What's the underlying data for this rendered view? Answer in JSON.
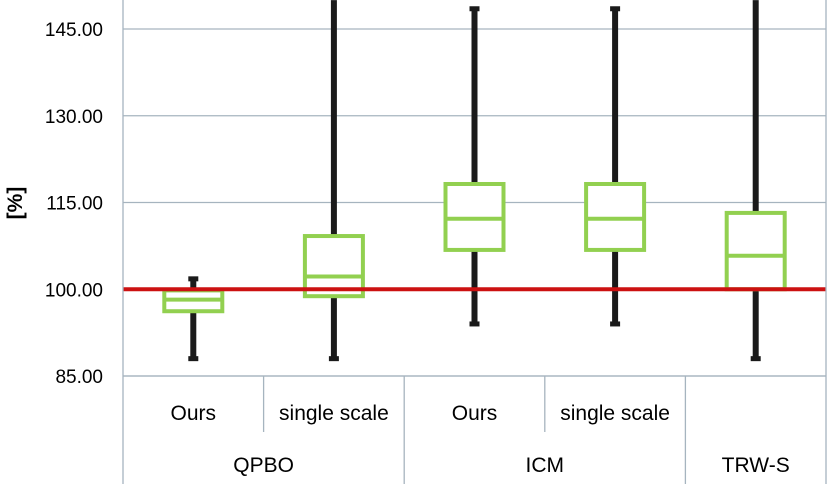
{
  "chart_data": {
    "type": "box",
    "ylabel": "[%]",
    "ylim": [
      85,
      150
    ],
    "yticks": [
      "85.00",
      "100.00",
      "115.00",
      "130.00",
      "145.00"
    ],
    "reference_line": {
      "y": 100,
      "color": "#cc1111"
    },
    "grid": true,
    "colors": {
      "box": "#92d050",
      "whisker": "#1a1a1a",
      "grid": "#a6b4bf"
    },
    "groups": [
      {
        "label": "QPBO",
        "categories": [
          "Ours",
          "single scale"
        ]
      },
      {
        "label": "ICM",
        "categories": [
          "Ours",
          "single scale"
        ]
      },
      {
        "label": "TRW-S",
        "categories": [
          ""
        ]
      }
    ],
    "boxes": [
      {
        "group": "QPBO",
        "category": "Ours",
        "min": 88,
        "q1": 96.2,
        "median": 98.2,
        "q3": 99.8,
        "max": 101.8
      },
      {
        "group": "QPBO",
        "category": "single scale",
        "min": 88,
        "q1": 98.8,
        "median": 102.2,
        "q3": 109.2,
        "max": 150
      },
      {
        "group": "ICM",
        "category": "Ours",
        "min": 94,
        "q1": 106.8,
        "median": 112.2,
        "q3": 118.2,
        "max": 148.5
      },
      {
        "group": "ICM",
        "category": "single scale",
        "min": 94,
        "q1": 106.8,
        "median": 112.2,
        "q3": 118.2,
        "max": 148.5
      },
      {
        "group": "TRW-S",
        "category": "",
        "min": 88,
        "q1": 100,
        "median": 105.8,
        "q3": 113.2,
        "max": 150
      }
    ]
  }
}
